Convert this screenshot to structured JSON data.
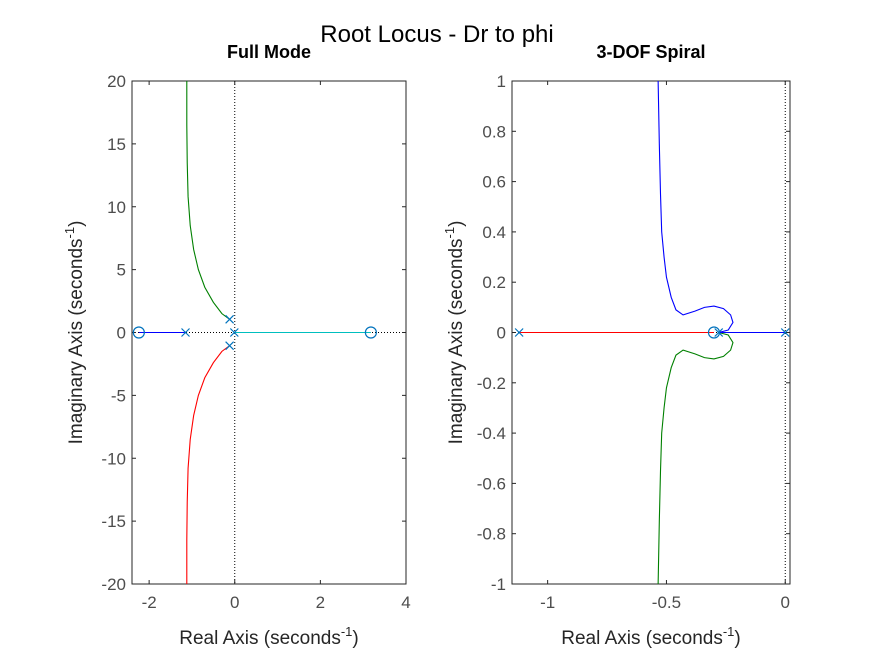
{
  "figure": {
    "title": "Root Locus - Dr to phi"
  },
  "chart_data": [
    {
      "type": "scatter",
      "title": "Full Mode",
      "xlabel": "Real Axis (seconds",
      "ylabel": "Imaginary Axis (seconds",
      "label_superscript": "-1",
      "label_close": ")",
      "xlim": [
        -2.4,
        4
      ],
      "ylim": [
        -20,
        20
      ],
      "xticks": [
        -2,
        0,
        2,
        4
      ],
      "yticks": [
        20,
        15,
        10,
        5,
        0,
        -5,
        -10,
        -15,
        -20
      ],
      "xtick_labels": [
        "-2",
        "0",
        "2",
        "4"
      ],
      "ytick_labels": [
        "20",
        "15",
        "10",
        "5",
        "0",
        "-5",
        "-10",
        "-15",
        "-20"
      ],
      "poles": [
        [
          -1.15,
          0
        ],
        [
          -0.12,
          1.05
        ],
        [
          -0.12,
          -1.05
        ],
        [
          -0.01,
          0
        ]
      ],
      "zeros": [
        [
          -2.24,
          0
        ],
        [
          3.18,
          0
        ]
      ],
      "series": [
        {
          "color": "#0000ff",
          "points": [
            [
              -2.24,
              0
            ],
            [
              -1.15,
              0
            ]
          ]
        },
        {
          "color": "#008000",
          "points": [
            [
              -0.12,
              1.05
            ],
            [
              -0.3,
              1.5
            ],
            [
              -0.5,
              2.4
            ],
            [
              -0.7,
              3.6
            ],
            [
              -0.85,
              5.0
            ],
            [
              -0.96,
              6.6
            ],
            [
              -1.04,
              8.5
            ],
            [
              -1.09,
              10.8
            ],
            [
              -1.11,
              13.5
            ],
            [
              -1.12,
              16.5
            ],
            [
              -1.12,
              20.0
            ]
          ]
        },
        {
          "color": "#ff0000",
          "points": [
            [
              -0.12,
              -1.05
            ],
            [
              -0.3,
              -1.5
            ],
            [
              -0.5,
              -2.4
            ],
            [
              -0.7,
              -3.6
            ],
            [
              -0.85,
              -5.0
            ],
            [
              -0.96,
              -6.6
            ],
            [
              -1.04,
              -8.5
            ],
            [
              -1.09,
              -10.8
            ],
            [
              -1.11,
              -13.5
            ],
            [
              -1.12,
              -16.5
            ],
            [
              -1.12,
              -20.0
            ]
          ]
        },
        {
          "color": "#00bfbf",
          "points": [
            [
              -0.01,
              0
            ],
            [
              3.18,
              0
            ]
          ]
        }
      ]
    },
    {
      "type": "scatter",
      "title": "3-DOF Spiral",
      "xlabel": "Real Axis (seconds",
      "ylabel": "Imaginary Axis (seconds",
      "label_superscript": "-1",
      "label_close": ")",
      "xlim": [
        -1.15,
        0.02
      ],
      "ylim": [
        -1,
        1
      ],
      "xticks": [
        -1,
        -0.5,
        0
      ],
      "yticks": [
        1,
        0.8,
        0.6,
        0.4,
        0.2,
        0,
        -0.2,
        -0.4,
        -0.6,
        -0.8,
        -1
      ],
      "xtick_labels": [
        "-1",
        "-0.5",
        "0"
      ],
      "ytick_labels": [
        "1",
        "0.8",
        "0.6",
        "0.4",
        "0.2",
        "0",
        "-0.2",
        "-0.4",
        "-0.6",
        "-0.8",
        "-1"
      ],
      "poles": [
        [
          -1.12,
          0
        ],
        [
          -0.28,
          0
        ],
        [
          0.0,
          0
        ]
      ],
      "zeros": [
        [
          -0.3,
          0
        ]
      ],
      "series": [
        {
          "color": "#ff0000",
          "points": [
            [
              -1.12,
              0
            ],
            [
              -0.3,
              0
            ]
          ]
        },
        {
          "color": "#0000ff",
          "points": [
            [
              -0.28,
              0
            ],
            [
              -0.24,
              0.01
            ],
            [
              -0.22,
              0.04
            ],
            [
              -0.23,
              0.07
            ],
            [
              -0.26,
              0.095
            ],
            [
              -0.3,
              0.105
            ],
            [
              -0.34,
              0.1
            ],
            [
              -0.38,
              0.085
            ],
            [
              -0.43,
              0.07
            ],
            [
              -0.46,
              0.09
            ],
            [
              -0.48,
              0.14
            ],
            [
              -0.5,
              0.22
            ],
            [
              -0.51,
              0.3
            ],
            [
              -0.52,
              0.4
            ],
            [
              -0.525,
              0.55
            ],
            [
              -0.53,
              0.75
            ],
            [
              -0.535,
              1.0
            ]
          ]
        },
        {
          "color": "#008000",
          "points": [
            [
              -0.28,
              0
            ],
            [
              -0.24,
              -0.01
            ],
            [
              -0.22,
              -0.04
            ],
            [
              -0.23,
              -0.07
            ],
            [
              -0.26,
              -0.095
            ],
            [
              -0.3,
              -0.105
            ],
            [
              -0.34,
              -0.1
            ],
            [
              -0.38,
              -0.085
            ],
            [
              -0.43,
              -0.07
            ],
            [
              -0.46,
              -0.09
            ],
            [
              -0.48,
              -0.14
            ],
            [
              -0.5,
              -0.22
            ],
            [
              -0.51,
              -0.3
            ],
            [
              -0.52,
              -0.4
            ],
            [
              -0.525,
              -0.55
            ],
            [
              -0.53,
              -0.75
            ],
            [
              -0.535,
              -1.0
            ]
          ]
        },
        {
          "color": "#0000ff",
          "points": [
            [
              -0.28,
              0
            ],
            [
              0.0,
              0
            ]
          ]
        }
      ]
    }
  ]
}
